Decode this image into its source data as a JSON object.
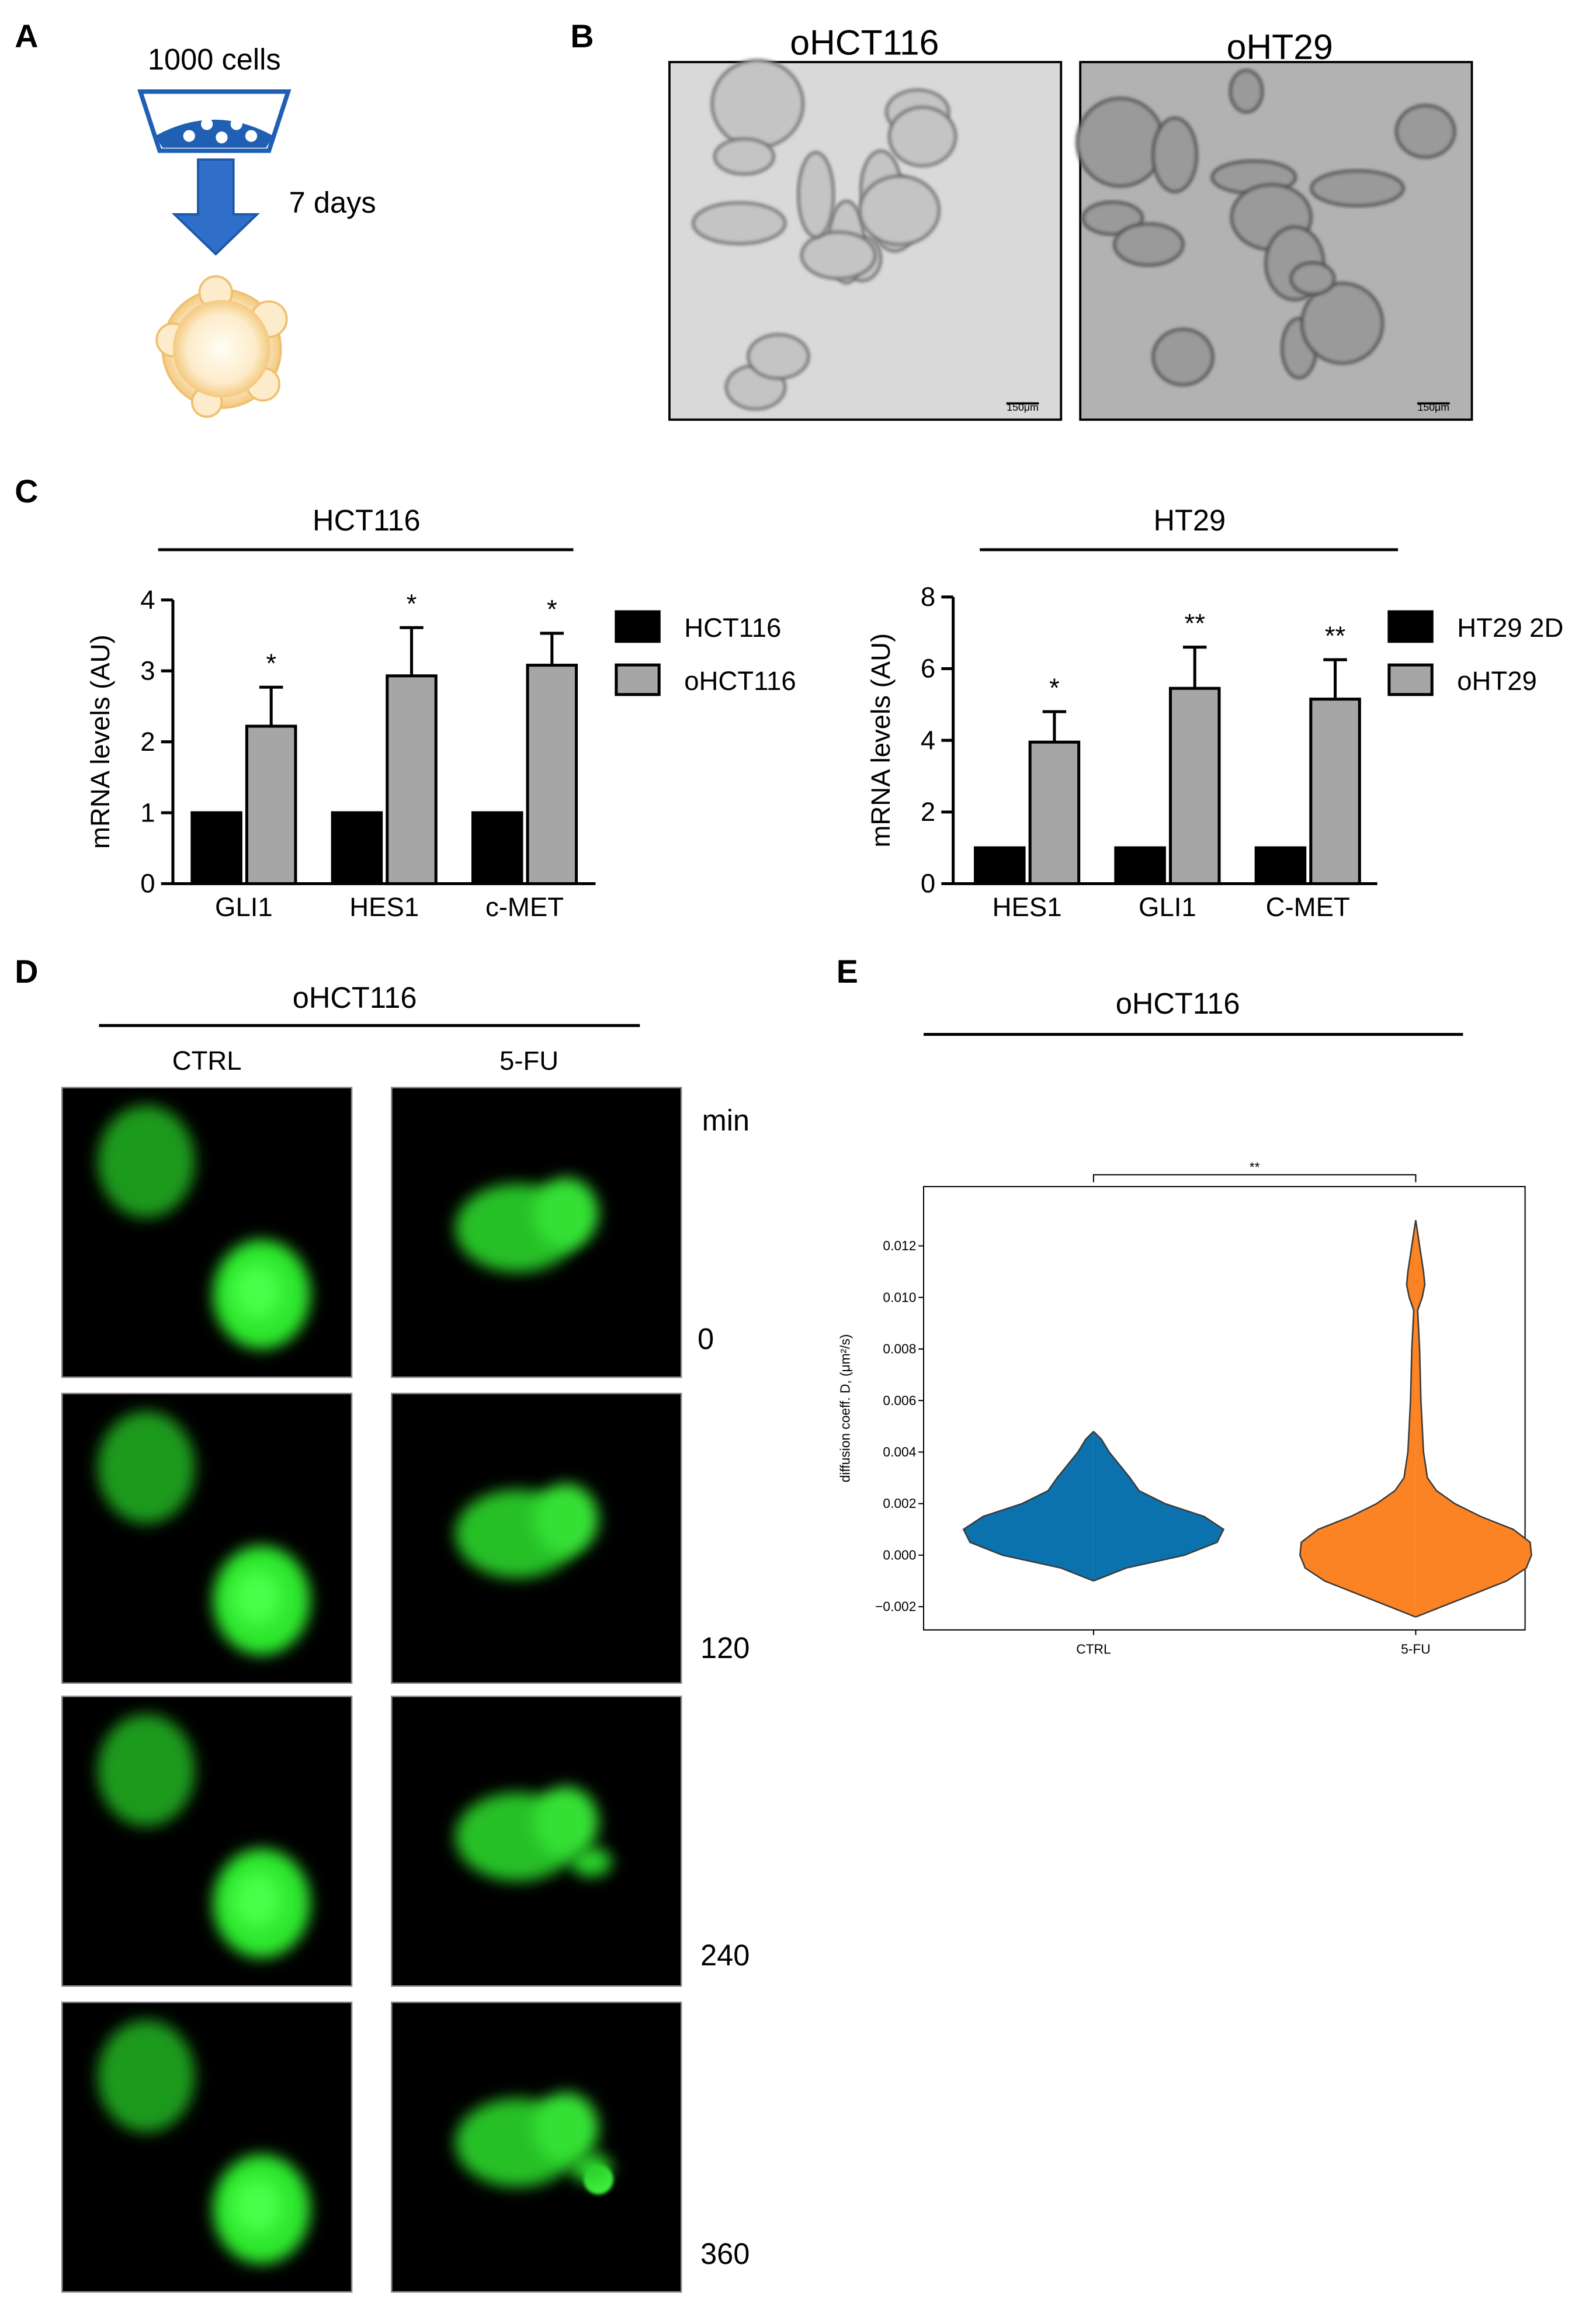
{
  "panel_labels": [
    "A",
    "B",
    "C",
    "D",
    "E"
  ],
  "panel_a": {
    "cells_label": "1000 cells",
    "time_label": "7 days"
  },
  "panel_b": {
    "images": [
      {
        "title": "oHCT116",
        "scale_bar": "150μm"
      },
      {
        "title": "oHT29",
        "scale_bar": "150μm"
      }
    ]
  },
  "panel_d": {
    "title": "oHCT116",
    "columns": [
      "CTRL",
      "5-FU"
    ],
    "time_unit": "min",
    "times": [
      "0",
      "120",
      "240",
      "360"
    ]
  },
  "chart_data": [
    {
      "type": "bar",
      "title": "HCT116",
      "y_label": "mRNA levels (AU)",
      "categories": [
        "GLI1",
        "HES1",
        "c-MET"
      ],
      "series": [
        {
          "name": "HCT116",
          "color": "#000000",
          "values": [
            1,
            1,
            1
          ]
        },
        {
          "name": "oHCT116",
          "color": "#a6a6a6",
          "values": [
            2.22,
            2.93,
            3.08
          ],
          "errors": [
            0.55,
            0.68,
            0.45
          ],
          "annotations": [
            "*",
            "*",
            "*"
          ]
        }
      ],
      "ylim": [
        0,
        4
      ],
      "yticks": [
        0,
        1,
        2,
        3,
        4
      ]
    },
    {
      "type": "bar",
      "title": "HT29",
      "y_label": "mRNA levels (AU)",
      "categories": [
        "HES1",
        "GLI1",
        "C-MET"
      ],
      "series": [
        {
          "name": "HT29 2D",
          "color": "#000000",
          "values": [
            1,
            1,
            1
          ]
        },
        {
          "name": "oHT29",
          "color": "#a6a6a6",
          "values": [
            3.95,
            5.45,
            5.15
          ],
          "errors": [
            0.85,
            1.15,
            1.1
          ],
          "annotations": [
            "*",
            "**",
            "**"
          ]
        }
      ],
      "ylim": [
        0,
        8
      ],
      "yticks": [
        0,
        2,
        4,
        6,
        8
      ]
    },
    {
      "type": "violin",
      "title": "oHCT116",
      "y_label": "diffusion coeff. D, (μm²/s)",
      "categories": [
        "CTRL",
        "5-FU"
      ],
      "significance": "**",
      "series": [
        {
          "name": "CTRL",
          "color": "#0b72ae",
          "values": [
            -0.001,
            -0.0005,
            0,
            0.0005,
            0.001,
            0.0015,
            0.002,
            0.0025,
            0.003,
            0.0035,
            0.004,
            0.0045,
            0.0048
          ],
          "density": [
            0,
            0.25,
            0.7,
            0.95,
            1.0,
            0.85,
            0.55,
            0.35,
            0.28,
            0.2,
            0.12,
            0.06,
            0
          ]
        },
        {
          "name": "5-FU",
          "color": "#fb8324",
          "values": [
            -0.0024,
            -0.002,
            -0.0015,
            -0.001,
            -0.0005,
            0,
            0.0005,
            0.001,
            0.0015,
            0.002,
            0.0025,
            0.003,
            0.004,
            0.005,
            0.006,
            0.007,
            0.008,
            0.009,
            0.0095,
            0.01,
            0.0105,
            0.011,
            0.012,
            0.013
          ],
          "density": [
            0,
            0.2,
            0.45,
            0.7,
            0.85,
            0.89,
            0.88,
            0.75,
            0.5,
            0.3,
            0.16,
            0.09,
            0.06,
            0.05,
            0.04,
            0.035,
            0.03,
            0.02,
            0.015,
            0.05,
            0.07,
            0.06,
            0.03,
            0
          ]
        }
      ],
      "ylim": [
        -0.0029,
        0.0143
      ],
      "yticks": [
        {
          "value": -0.002,
          "label": "−0.002"
        },
        {
          "value": 0,
          "label": "0.000"
        },
        0.002,
        0.004,
        0.006,
        0.008,
        {
          "value": 0.01,
          "label": "0.010"
        },
        0.012
      ]
    }
  ]
}
